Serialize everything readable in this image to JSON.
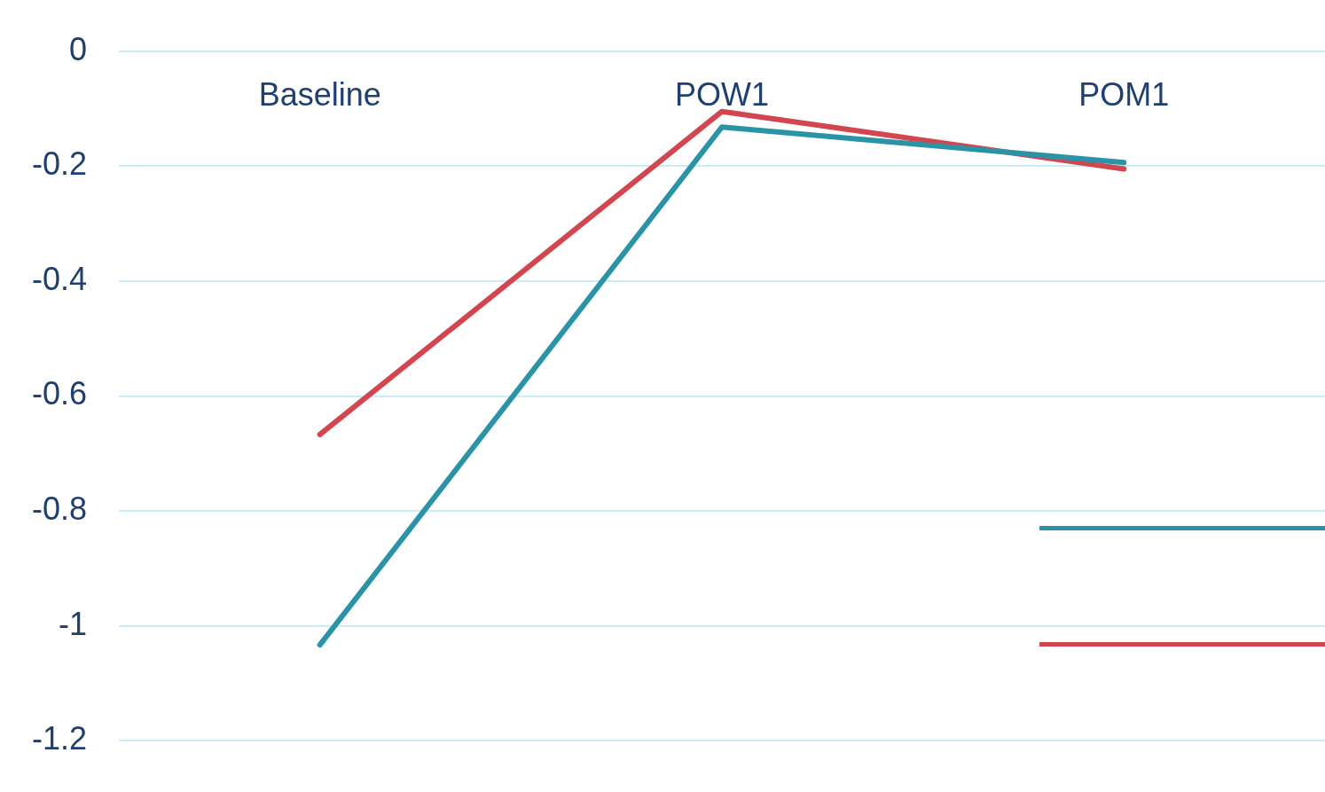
{
  "chart_data": {
    "type": "line",
    "categories": [
      "Baseline",
      "POW1",
      "POM1"
    ],
    "series": [
      {
        "color": "#2a94a6",
        "values": [
          -1.033,
          -0.132,
          -0.194
        ]
      },
      {
        "color": "#d3464f",
        "values": [
          -0.667,
          -0.105,
          -0.205
        ]
      }
    ],
    "ylim": [
      -1.2,
      0
    ],
    "yticks": [
      -1.2,
      -1,
      -0.8,
      -0.6,
      -0.4,
      -0.2,
      0
    ],
    "grid": "y",
    "marker": "none",
    "line_style": "solid"
  }
}
